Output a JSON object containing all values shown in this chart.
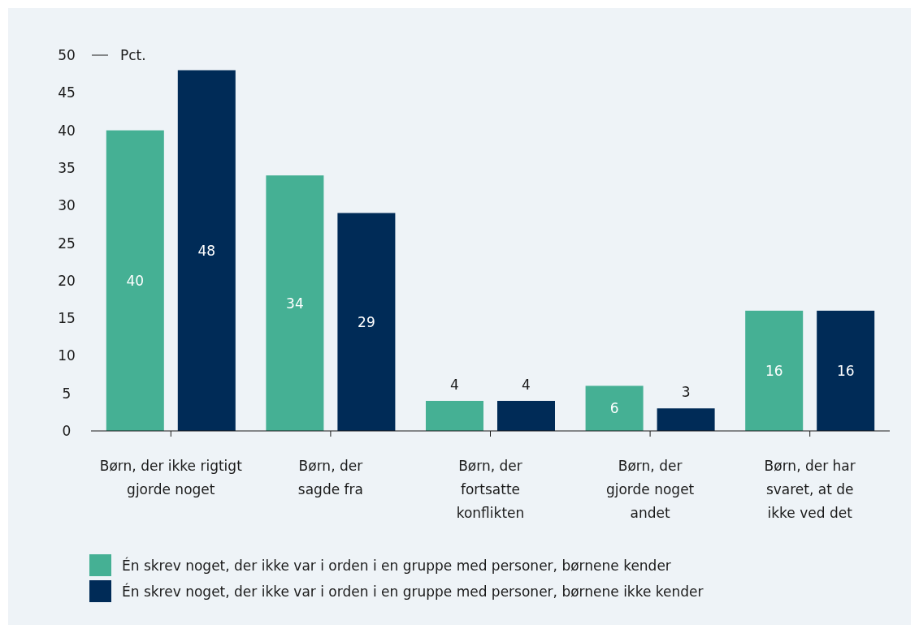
{
  "chart_data": {
    "type": "bar",
    "ylabel": "Pct.",
    "categories": [
      "Børn, der ikke rigtigt gjorde noget",
      "Børn, der sagde fra",
      "Børn, der fortsatte konflikten",
      "Børn, der gjorde noget andet",
      "Børn, der har svaret, at de ikke ved det"
    ],
    "series": [
      {
        "name": "Én skrev noget, der ikke var i orden i en gruppe med personer, børnene kender",
        "color": "#45b094",
        "values": [
          40,
          34,
          4,
          6,
          16
        ]
      },
      {
        "name": "Én skrev noget, der ikke var i orden i en gruppe med personer, børnene ikke kender",
        "color": "#002b57",
        "values": [
          48,
          29,
          4,
          3,
          16
        ]
      }
    ],
    "ylim": [
      0,
      50
    ],
    "yticks": [
      0,
      5,
      10,
      15,
      20,
      25,
      30,
      35,
      40,
      45,
      50
    ],
    "data_labels": true,
    "legend": "bottom",
    "grid": false
  }
}
